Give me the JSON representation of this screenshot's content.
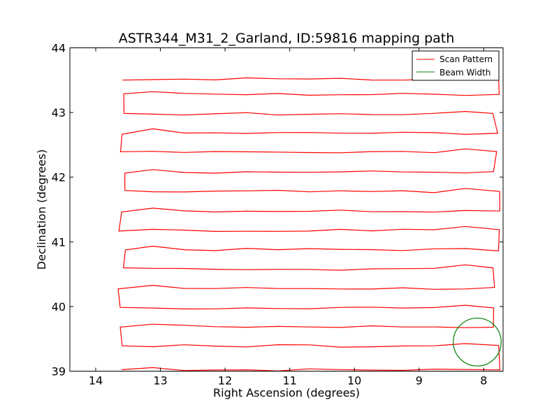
{
  "chart_data": {
    "type": "line",
    "title": "ASTR344_M31_2_Garland, ID:59816 mapping path",
    "xlabel": "Right Ascension (degrees)",
    "ylabel": "Declination (degrees)",
    "xlim": [
      14.4,
      7.7
    ],
    "ylim": [
      39,
      44
    ],
    "x_inverted": true,
    "xticks": [
      14,
      13,
      12,
      11,
      10,
      9,
      8
    ],
    "yticks": [
      39,
      40,
      41,
      42,
      43,
      44
    ],
    "grid": false,
    "legend_position": "top-right",
    "legend": [
      "Scan Pattern",
      "Beam Width"
    ],
    "series": [
      {
        "name": "Scan Pattern",
        "kind": "line",
        "color": "#ff0000",
        "scan_start_ra": 13.6,
        "scan_end_ra": 7.8,
        "dec_rows": [
          39.02,
          39.39,
          39.69,
          39.98,
          40.28,
          40.58,
          40.88,
          41.18,
          41.48,
          41.78,
          42.08,
          42.38,
          42.68,
          42.98,
          43.28,
          43.52
        ]
      },
      {
        "name": "Beam Width",
        "kind": "circle",
        "color": "#008000",
        "center": [
          8.1,
          39.45
        ],
        "radius_deg": 0.37
      }
    ]
  }
}
